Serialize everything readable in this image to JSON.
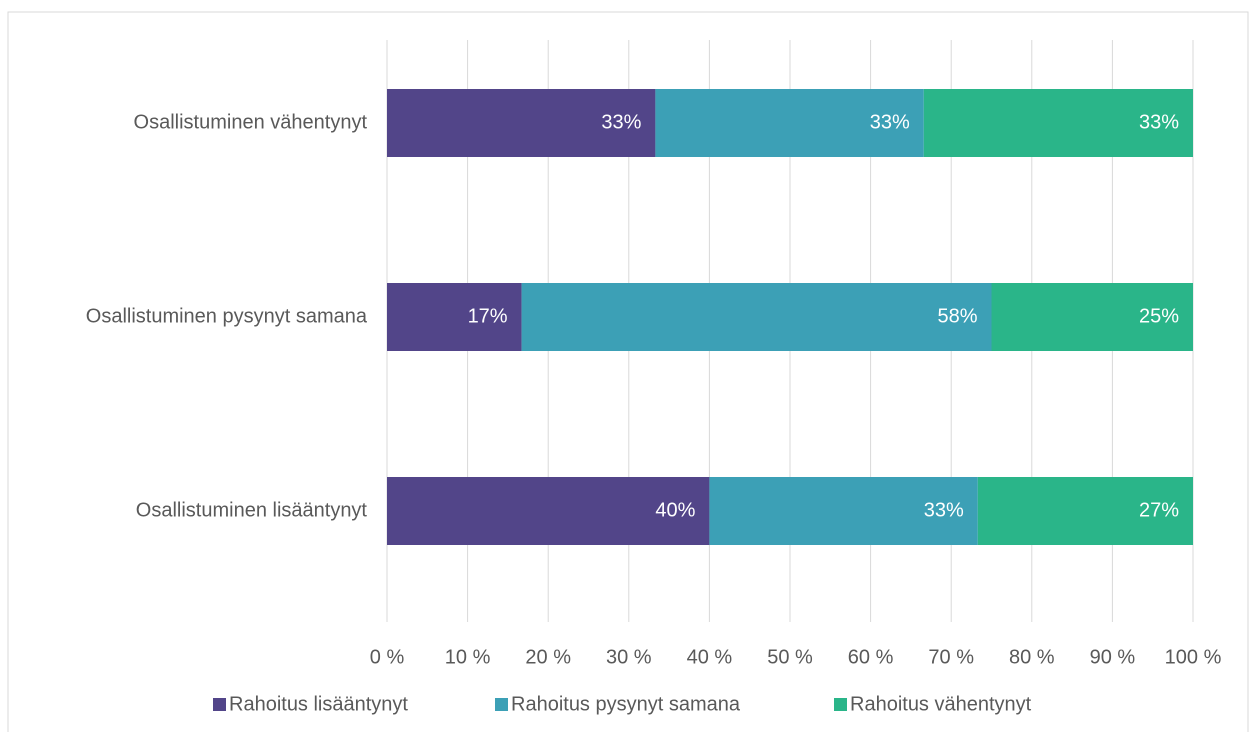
{
  "chart_data": {
    "type": "stacked-bar-horizontal",
    "categories": [
      "Osallistuminen vähentynyt",
      "Osallistuminen pysynyt samana",
      "Osallistuminen lisääntynyt"
    ],
    "series": [
      {
        "name": "Rahoitus lisääntynyt",
        "color": "#524589",
        "values": [
          33.3,
          16.7,
          40
        ],
        "value_labels": [
          "33%",
          "17%",
          "40%"
        ]
      },
      {
        "name": "Rahoitus pysynyt samana",
        "color": "#3ca0b6",
        "values": [
          33.3,
          58.3,
          33.3
        ],
        "value_labels": [
          "33%",
          "58%",
          "33%"
        ]
      },
      {
        "name": "Rahoitus vähentynyt",
        "color": "#2ab589",
        "values": [
          33.4,
          25,
          26.7
        ],
        "value_labels": [
          "33%",
          "25%",
          "27%"
        ]
      }
    ],
    "xlim": [
      0,
      100
    ],
    "xticks": [
      {
        "value": 0,
        "label": "0 %"
      },
      {
        "value": 10,
        "label": "10 %"
      },
      {
        "value": 20,
        "label": "20 %"
      },
      {
        "value": 30,
        "label": "30 %"
      },
      {
        "value": 40,
        "label": "40 %"
      },
      {
        "value": 50,
        "label": "50 %"
      },
      {
        "value": 60,
        "label": "60 %"
      },
      {
        "value": 70,
        "label": "70 %"
      },
      {
        "value": 80,
        "label": "80 %"
      },
      {
        "value": 90,
        "label": "90 %"
      },
      {
        "value": 100,
        "label": "100 %"
      }
    ],
    "grid": true,
    "legend": "bottom"
  }
}
